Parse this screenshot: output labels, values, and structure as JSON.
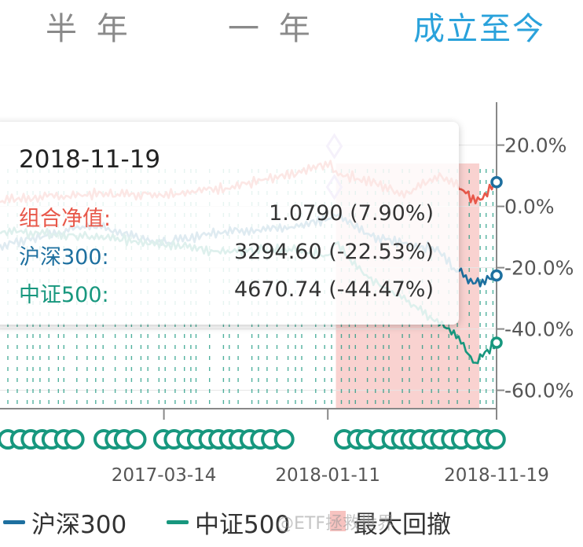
{
  "tabs": [
    {
      "label": "半 年",
      "active": false
    },
    {
      "label": "一 年",
      "active": false
    },
    {
      "label": "成立至今",
      "active": true
    }
  ],
  "colors": {
    "portfolio": "#e8584a",
    "hs300": "#1d6f9f",
    "zz500": "#17977e",
    "drawdown": "#f7c3c0",
    "accent": "#2aa2db"
  },
  "tooltip": {
    "date": "2018-11-19",
    "rows": [
      {
        "label": "组合净值:",
        "value": "1.0790 (7.90%)",
        "color": "#e8584a"
      },
      {
        "label": "沪深300:",
        "value": "3294.60 (-22.53%)",
        "color": "#1d6f9f"
      },
      {
        "label": "中证500:",
        "value": "4670.74 (-44.47%)",
        "color": "#17977e"
      }
    ]
  },
  "legend": [
    {
      "label": "沪深300",
      "color": "#1d6f9f",
      "kind": "line"
    },
    {
      "label": "中证500",
      "color": "#17977e",
      "kind": "line"
    },
    {
      "label": "最大回撤",
      "color": "#f7c3c0",
      "kind": "box"
    }
  ],
  "watermark": "@ETF拯救世界",
  "chart_data": {
    "type": "line",
    "x_ticks": [
      "2017-03-14",
      "2018-01-11",
      "2018-11-19"
    ],
    "y_ticks": [
      "20.0%",
      "0.0%",
      "-20.0%",
      "-40.0%",
      "-60.0%"
    ],
    "ylim": [
      -66,
      34
    ],
    "x_range": [
      "2016-05-15",
      "2018-11-19"
    ],
    "grid": true,
    "legend_position": "bottom",
    "series": [
      {
        "name": "组合净值",
        "color": "#e8584a",
        "x": [
          "2016-05-15",
          "2016-11-01",
          "2017-03-14",
          "2017-07-01",
          "2017-11-01",
          "2018-01-11",
          "2018-01-26",
          "2018-04-01",
          "2018-06-01",
          "2018-08-01",
          "2018-09-01",
          "2018-10-11",
          "2018-11-19"
        ],
        "values": [
          2,
          4,
          4,
          6,
          10,
          14,
          11,
          8,
          4,
          10,
          8,
          1,
          7.9
        ]
      },
      {
        "name": "沪深300",
        "color": "#1d6f9f",
        "x": [
          "2016-05-15",
          "2016-11-01",
          "2017-03-14",
          "2017-07-01",
          "2017-11-01",
          "2018-01-11",
          "2018-01-26",
          "2018-04-01",
          "2018-06-01",
          "2018-08-01",
          "2018-09-01",
          "2018-10-11",
          "2018-11-19"
        ],
        "values": [
          -13,
          -6,
          -12,
          -8,
          -7,
          -4,
          -2,
          -10,
          -12,
          -14,
          -20,
          -25,
          -22.53
        ]
      },
      {
        "name": "中证500",
        "color": "#17977e",
        "x": [
          "2016-05-15",
          "2016-11-01",
          "2017-03-14",
          "2017-07-01",
          "2017-11-01",
          "2018-01-11",
          "2018-01-26",
          "2018-04-01",
          "2018-06-01",
          "2018-08-01",
          "2018-09-01",
          "2018-10-11",
          "2018-11-19"
        ],
        "values": [
          -8,
          -10,
          -12,
          -15,
          -14,
          -16,
          -12,
          -24,
          -30,
          -38,
          -41,
          -51,
          -44.47
        ]
      }
    ],
    "max_drawdown_range": [
      "2018-01-26",
      "2018-10-18"
    ],
    "current_point": {
      "x": "2018-11-19",
      "portfolio": 7.9,
      "hs300": -22.53,
      "zz500": -44.47
    }
  }
}
